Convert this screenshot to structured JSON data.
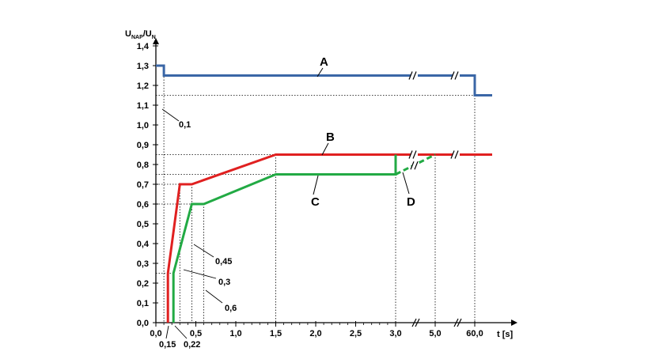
{
  "chart_data": {
    "type": "line",
    "ylabel": {
      "main": "U",
      "sub1": "NAP",
      "slash": "/U",
      "sub2": "N"
    },
    "xlabel": "t [s]",
    "ylim": [
      0,
      1.4
    ],
    "y_ticks": [
      "0,0",
      "0,1",
      "0,2",
      "0,3",
      "0,4",
      "0,5",
      "0,6",
      "0,7",
      "0,8",
      "0,9",
      "1,0",
      "1,1",
      "1,2",
      "1,3",
      "1,4"
    ],
    "y_tick_values": [
      0,
      0.1,
      0.2,
      0.3,
      0.4,
      0.5,
      0.6,
      0.7,
      0.8,
      0.9,
      1.0,
      1.1,
      1.2,
      1.3,
      1.4
    ],
    "x_ticks": [
      {
        "label": "0,0",
        "value": 0
      },
      {
        "label": "0,5",
        "value": 0.5
      },
      {
        "label": "1,0",
        "value": 1.0
      },
      {
        "label": "1,5",
        "value": 1.5
      },
      {
        "label": "2,0",
        "value": 2.0
      },
      {
        "label": "2,5",
        "value": 2.5
      },
      {
        "label": "3,0",
        "value": 3.0
      },
      {
        "label": "5,0",
        "value": 5.0
      },
      {
        "label": "60,0",
        "value": 60.0
      }
    ],
    "axis_breaks_x": [
      3.0,
      5.0
    ],
    "series": [
      {
        "name": "A",
        "color": "#3a66a6",
        "style": "solid",
        "points": [
          [
            0,
            1.3
          ],
          [
            0.1,
            1.3
          ],
          [
            0.1,
            1.25
          ],
          [
            3.0,
            1.25
          ],
          [
            5.0,
            1.25
          ],
          [
            60.0,
            1.25
          ],
          [
            60.0,
            1.15
          ],
          [
            62.0,
            1.15
          ]
        ]
      },
      {
        "name": "B",
        "color": "#e02020",
        "style": "solid",
        "points": [
          [
            0.15,
            0
          ],
          [
            0.15,
            0.25
          ],
          [
            0.3,
            0.7
          ],
          [
            0.45,
            0.7
          ],
          [
            1.5,
            0.85
          ],
          [
            3.0,
            0.85
          ],
          [
            5.0,
            0.85
          ],
          [
            60.0,
            0.85
          ],
          [
            62.0,
            0.85
          ]
        ]
      },
      {
        "name": "C",
        "color": "#22aa44",
        "style": "solid",
        "points": [
          [
            0.22,
            0
          ],
          [
            0.22,
            0.25
          ],
          [
            0.45,
            0.6
          ],
          [
            0.6,
            0.6
          ],
          [
            1.5,
            0.75
          ],
          [
            3.0,
            0.75
          ],
          [
            3.0,
            0.85
          ]
        ]
      },
      {
        "name": "D",
        "color": "#22aa44",
        "style": "dashed",
        "points": [
          [
            3.0,
            0.75
          ],
          [
            5.0,
            0.85
          ]
        ]
      }
    ],
    "annotations": [
      {
        "text": "0,1",
        "x": 0.1,
        "y": 1.1
      },
      {
        "text": "0,15",
        "x": 0.15,
        "y": 0
      },
      {
        "text": "0,22",
        "x": 0.22,
        "y": 0
      },
      {
        "text": "0,3",
        "x": 0.3,
        "y": 0.25
      },
      {
        "text": "0,45",
        "x": 0.45,
        "y": 0.4
      },
      {
        "text": "0,6",
        "x": 0.6,
        "y": 0.2
      }
    ],
    "grid": false
  }
}
